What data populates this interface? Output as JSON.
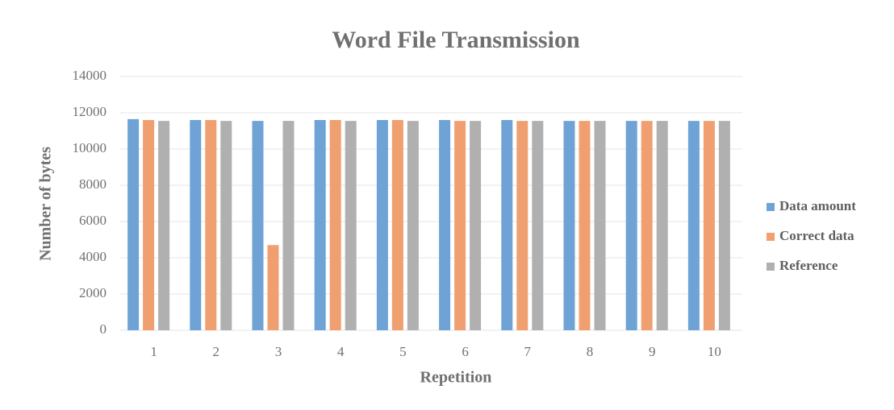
{
  "chart_data": {
    "type": "bar",
    "title": "Word File Transmission",
    "x_label": "Repetition",
    "y_label": "Number of bytes",
    "categories": [
      "1",
      "2",
      "3",
      "4",
      "5",
      "6",
      "7",
      "8",
      "9",
      "10"
    ],
    "series": [
      {
        "name": "Data amount",
        "color": "#6fa3d6",
        "values": [
          11650,
          11600,
          11550,
          11600,
          11600,
          11600,
          11600,
          11550,
          11550,
          11550
        ]
      },
      {
        "name": "Correct data",
        "color": "#f0a070",
        "values": [
          11600,
          11600,
          4700,
          11600,
          11600,
          11550,
          11550,
          11550,
          11550,
          11550
        ]
      },
      {
        "name": "Reference",
        "color": "#b0b0b0",
        "values": [
          11550,
          11550,
          11550,
          11550,
          11550,
          11550,
          11550,
          11550,
          11550,
          11550
        ]
      }
    ],
    "ylim": [
      0,
      14000
    ],
    "yticks": [
      0,
      2000,
      4000,
      6000,
      8000,
      10000,
      12000,
      14000
    ],
    "grid": true,
    "legend": "right"
  }
}
